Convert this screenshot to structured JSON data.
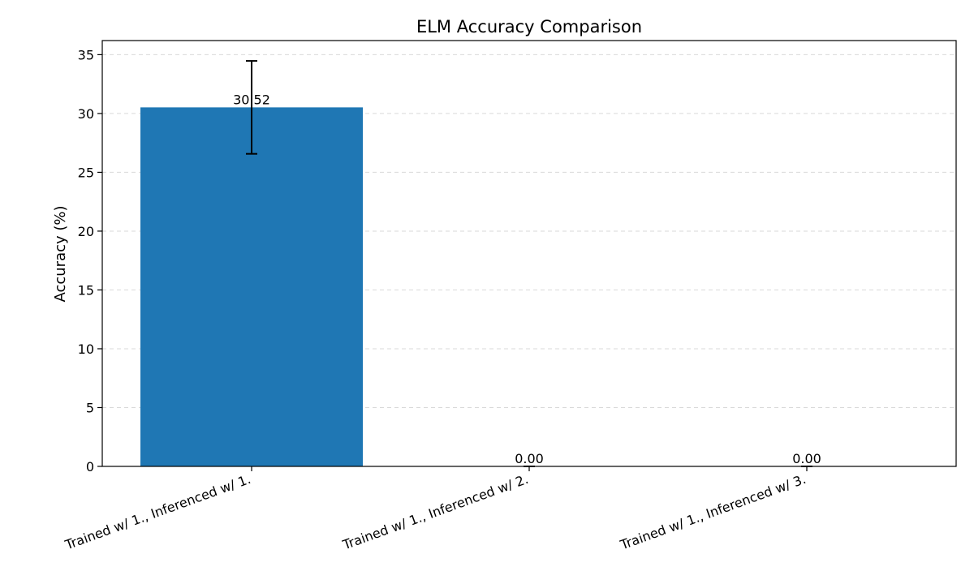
{
  "chart_data": {
    "type": "bar",
    "title": "ELM Accuracy Comparison",
    "xlabel": "",
    "ylabel": "Accuracy (%)",
    "categories": [
      "Trained w/ 1., Inferenced w/ 1.",
      "Trained w/ 1., Inferenced w/ 2.",
      "Trained w/ 1., Inferenced w/ 3."
    ],
    "values": [
      30.52,
      0.0,
      0.0
    ],
    "value_labels": [
      "30.52",
      "0.00",
      "0.00"
    ],
    "errors": [
      3.95,
      0,
      0
    ],
    "ylim": [
      0,
      36.2
    ],
    "yticks": [
      0,
      5,
      10,
      15,
      20,
      25,
      30,
      35
    ],
    "grid": true,
    "grid_axis": "y",
    "bar_color": "#1f77b4",
    "legend": "none"
  }
}
